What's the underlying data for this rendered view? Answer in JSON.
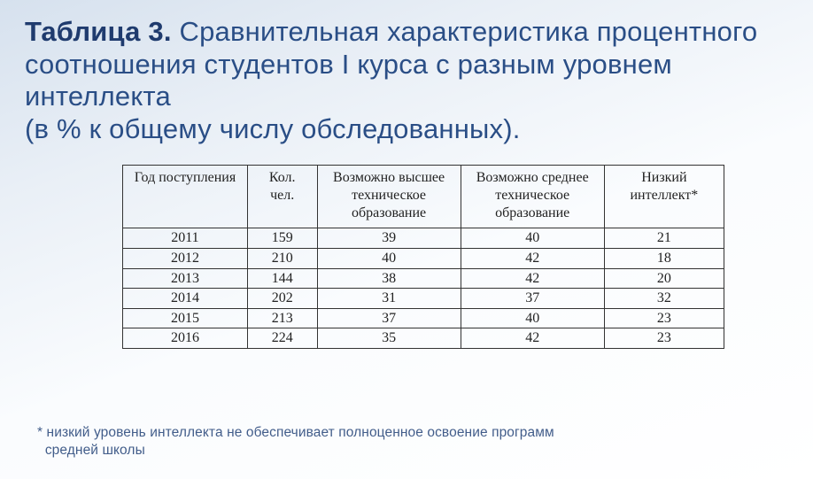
{
  "title": {
    "bold": "Таблица 3.",
    "rest": "Сравнительная характеристика процентного соотношения студентов I курса с разным уровнем интеллекта",
    "paren": "(в % к общему числу обследованных)."
  },
  "table": {
    "columns": [
      {
        "key": "year",
        "label": "Год поступления",
        "class": "col-year"
      },
      {
        "key": "count",
        "label": "Кол. чел.",
        "class": "col-count"
      },
      {
        "key": "hi",
        "label": "Возможно высшее техническое образование",
        "class": "col-hi"
      },
      {
        "key": "mid",
        "label": "Возможно среднее техническое образование",
        "class": "col-mid"
      },
      {
        "key": "low",
        "label": "Низкий интеллект*",
        "class": "col-low"
      }
    ],
    "rows": [
      {
        "year": "2011",
        "count": "159",
        "hi": "39",
        "mid": "40",
        "low": "21"
      },
      {
        "year": "2012",
        "count": "210",
        "hi": "40",
        "mid": "42",
        "low": "18"
      },
      {
        "year": "2013",
        "count": "144",
        "hi": "38",
        "mid": "42",
        "low": "20"
      },
      {
        "year": "2014",
        "count": "202",
        "hi": "31",
        "mid": "37",
        "low": "32"
      },
      {
        "year": "2015",
        "count": "213",
        "hi": "37",
        "mid": "40",
        "low": "23"
      },
      {
        "year": "2016",
        "count": "224",
        "hi": "35",
        "mid": "42",
        "low": "23"
      }
    ]
  },
  "footnote": {
    "line1": "* низкий уровень интеллекта не обеспечивает полноценное освоение программ",
    "line2": "средней школы"
  },
  "style": {
    "title_color": "#2a4e86",
    "title_bold_color": "#1f3b6e",
    "title_fontsize": 31,
    "table_font": "Times New Roman",
    "table_fontsize": 16,
    "border_color": "#333333",
    "footnote_color": "#425d8a",
    "footnote_fontsize": 15.5,
    "background_gradient": [
      "#d6e1ee",
      "#e9eff6",
      "#fafcfe",
      "#ffffff"
    ]
  }
}
